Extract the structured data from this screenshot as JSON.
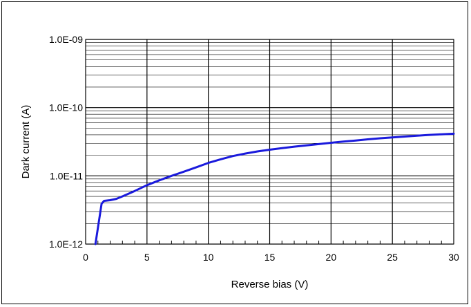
{
  "chart_data": {
    "type": "line",
    "xlabel": "Reverse bias (V)",
    "ylabel": "Dark current (A)",
    "xlim": [
      0,
      30
    ],
    "ylim": [
      1e-12,
      1e-09
    ],
    "yscale": "log",
    "x_ticks": [
      "0",
      "5",
      "10",
      "15",
      "20",
      "25",
      "30"
    ],
    "y_ticks": [
      "1.0E-12",
      "1.0E-11",
      "1.0E-10",
      "1.0E-09"
    ],
    "grid": true,
    "series": [
      {
        "color": "#1a1adc",
        "x": [
          0.8,
          1.3,
          1.5,
          2.0,
          2.5,
          3,
          4,
          5,
          6,
          7,
          8,
          9,
          10,
          11,
          12,
          13,
          14,
          15,
          16,
          17,
          18,
          19,
          20,
          21,
          22,
          23,
          24,
          25,
          26,
          27,
          28,
          29,
          30
        ],
        "y": [
          1e-12,
          3.9e-12,
          4.3e-12,
          4.4e-12,
          4.6e-12,
          5e-12,
          6e-12,
          7.3e-12,
          8.6e-12,
          1e-11,
          1.15e-11,
          1.33e-11,
          1.55e-11,
          1.75e-11,
          1.95e-11,
          2.12e-11,
          2.28e-11,
          2.42e-11,
          2.55e-11,
          2.68e-11,
          2.8e-11,
          2.92e-11,
          3.05e-11,
          3.18e-11,
          3.3e-11,
          3.43e-11,
          3.55e-11,
          3.66e-11,
          3.77e-11,
          3.88e-11,
          3.98e-11,
          4.07e-11,
          4.15e-11
        ]
      }
    ]
  }
}
